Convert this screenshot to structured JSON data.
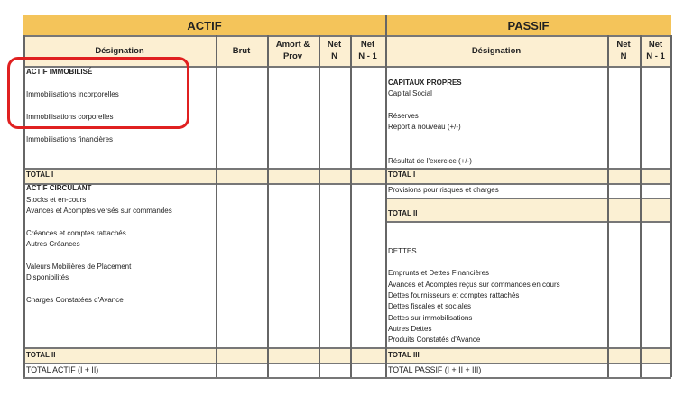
{
  "actif": {
    "title": "ACTIF",
    "headers": [
      "Désignation",
      "Brut",
      "Amort & Prov",
      "Net N",
      "Net N - 1"
    ],
    "header_lines": {
      "amort1": "Amort &",
      "amort2": "Prov",
      "net": "Net",
      "n": "N",
      "n1": "N - 1"
    },
    "immobilise": {
      "heading": "ACTIF IMMOBILISÉ",
      "items": [
        "Immobilisations incorporelles",
        "Immobilisations corporelles",
        "Immobilisations financières"
      ]
    },
    "total1": "TOTAL I",
    "circulant": {
      "heading": "ACTIF CIRCULANT",
      "items": [
        "Stocks et en-cours",
        "Avances et Acomptes versés sur commandes",
        "Créances et comptes rattachés",
        "Autres Créances",
        "Valeurs Mobilières de Placement",
        "Disponibilités",
        "Charges Constatées d'Avance"
      ]
    },
    "total2": "TOTAL II",
    "total_actif": "TOTAL ACTIF (I + II)"
  },
  "passif": {
    "title": "PASSIF",
    "headers": [
      "Désignation",
      "Net N",
      "Net N - 1"
    ],
    "capitaux": {
      "heading": "CAPITAUX PROPRES",
      "items": [
        "Capital Social",
        "Réserves",
        "Report à nouveau (+/-)",
        "Résultat de l'exercice (+/-)"
      ]
    },
    "total1": "TOTAL I",
    "provisions": "Provisions pour risques et charges",
    "total2": "TOTAL II",
    "dettes": {
      "heading": "DETTES",
      "items": [
        "Emprunts et Dettes Financières",
        "Avances et Acomptes reçus sur commandes en cours",
        "Dettes fournisseurs et comptes rattachés",
        "Dettes fiscales et sociales",
        "Dettes sur immobilisations",
        "Autres Dettes",
        "Produits Constatés d'Avance"
      ]
    },
    "total3": "TOTAL III",
    "total_passif": "TOTAL PASSIF (I + II + III)"
  },
  "colors": {
    "title_bg": "#f4c45a",
    "header_bg": "#fcefd2",
    "total_bg": "#fbf0d3",
    "highlight": "#e02020"
  }
}
